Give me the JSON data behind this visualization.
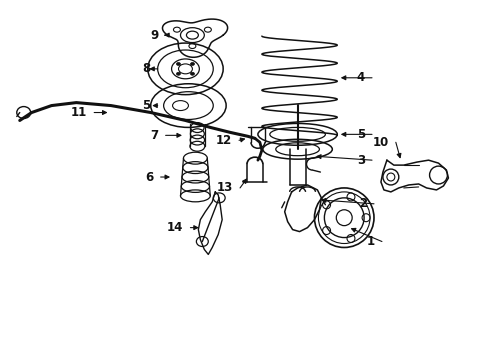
{
  "bg_color": "#ffffff",
  "line_color": "#111111",
  "label_color": "#000000",
  "figsize": [
    4.9,
    3.6
  ],
  "dpi": 100,
  "label_fontsize": 8.5,
  "label_bold": true
}
